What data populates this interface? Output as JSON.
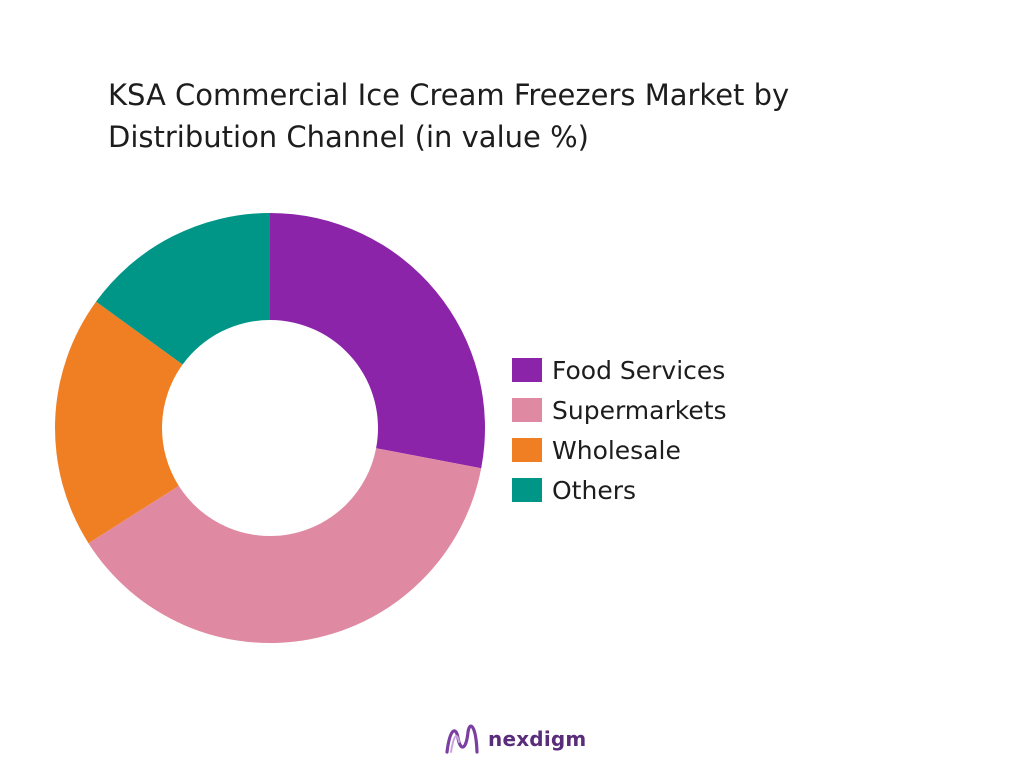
{
  "chart_data": {
    "type": "pie",
    "title": "KSA Commercial Ice Cream Freezers Market by Distribution Channel (in value %)",
    "title_lines": [
      "KSA Commercial Ice Cream Freezers Market by",
      "Distribution Channel (in value %)"
    ],
    "categories": [
      "Food Services",
      "Supermarkets",
      "Wholesale",
      "Others"
    ],
    "values": [
      28,
      38,
      19,
      15
    ],
    "unit": "%",
    "colors": [
      "#8b24a8",
      "#df8aa2",
      "#f07f24",
      "#009687"
    ],
    "donut": true,
    "legend_position": "right"
  },
  "brand": {
    "name": "nexdigm",
    "color": "#5a2d7a"
  }
}
